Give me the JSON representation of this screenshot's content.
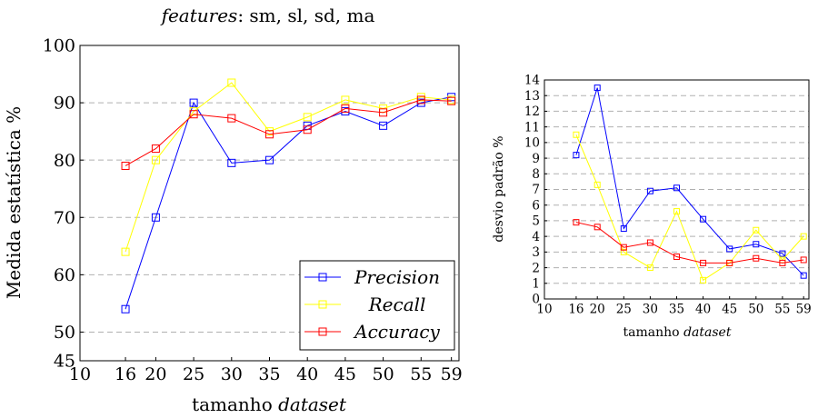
{
  "colors": {
    "precision": "#0000ff",
    "recall": "#ffff00",
    "accuracy": "#ff0000",
    "grid": "#b0b0b0"
  },
  "chart_data": [
    {
      "type": "line",
      "title": "sm, sl, sd, ma",
      "title_prefix": "features",
      "xlabel": "tamanho",
      "xlabel_italic": "dataset",
      "ylabel": "Medida estatística %",
      "x": [
        16,
        20,
        25,
        30,
        35,
        40,
        45,
        50,
        55,
        59
      ],
      "xticks": [
        "10",
        "16",
        "20",
        "25",
        "30",
        "35",
        "40",
        "45",
        "50",
        "55",
        "59"
      ],
      "yticks": [
        "45",
        "50",
        "60",
        "70",
        "80",
        "90",
        "100"
      ],
      "xlim": [
        10,
        60
      ],
      "ylim": [
        45,
        100
      ],
      "grid": "horizontal dashed",
      "legend_position": "bottom-right",
      "series": [
        {
          "name": "Precision",
          "values": [
            54,
            70,
            90,
            79.5,
            80,
            86,
            88.5,
            86,
            90,
            91
          ]
        },
        {
          "name": "Recall",
          "values": [
            64,
            80,
            88.5,
            93.5,
            85,
            87.5,
            90.5,
            89,
            91,
            90.5
          ]
        },
        {
          "name": "Accuracy",
          "values": [
            79,
            82,
            88,
            87.3,
            84.5,
            85.3,
            89,
            88.3,
            90.5,
            90.3
          ]
        }
      ]
    },
    {
      "type": "line",
      "xlabel": "tamanho",
      "xlabel_italic": "dataset",
      "ylabel": "desvio padrão %",
      "x": [
        16,
        20,
        25,
        30,
        35,
        40,
        45,
        50,
        55,
        59
      ],
      "xticks": [
        "10",
        "16",
        "20",
        "25",
        "30",
        "35",
        "40",
        "45",
        "50",
        "55",
        "59"
      ],
      "yticks": [
        "0",
        "1",
        "2",
        "3",
        "4",
        "5",
        "6",
        "7",
        "8",
        "9",
        "10",
        "11",
        "12",
        "13",
        "14"
      ],
      "xlim": [
        10,
        60
      ],
      "ylim": [
        0,
        14
      ],
      "grid": "horizontal dashed",
      "series": [
        {
          "name": "Precision",
          "values": [
            9.2,
            13.5,
            4.5,
            6.9,
            7.1,
            5.1,
            3.2,
            3.5,
            2.9,
            1.5
          ]
        },
        {
          "name": "Recall",
          "values": [
            10.5,
            7.3,
            3.0,
            2.0,
            5.6,
            1.2,
            2.3,
            4.4,
            2.5,
            4.0
          ]
        },
        {
          "name": "Accuracy",
          "values": [
            4.9,
            4.6,
            3.3,
            3.6,
            2.7,
            2.3,
            2.3,
            2.6,
            2.3,
            2.5
          ]
        }
      ]
    }
  ]
}
